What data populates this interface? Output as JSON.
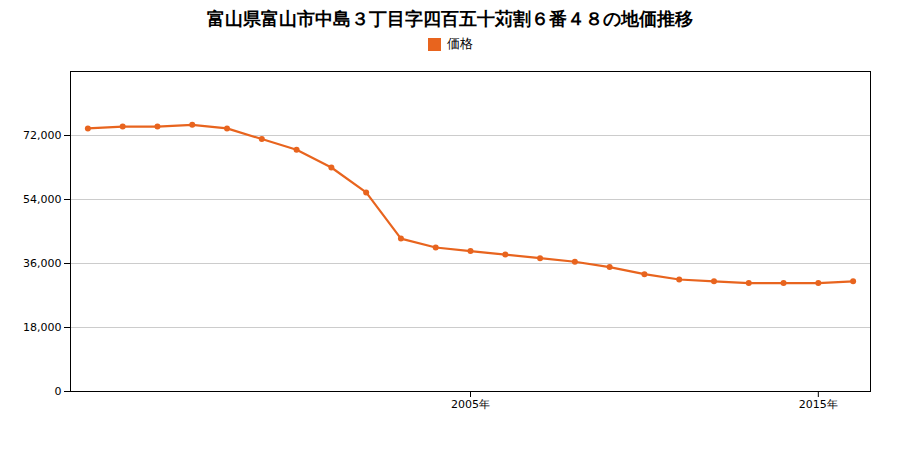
{
  "chart_data": {
    "type": "line",
    "title": "富山県富山市中島３丁目字四百五十苅割６番４８の地価推移",
    "x": [
      1994,
      1995,
      1996,
      1997,
      1998,
      1999,
      2000,
      2001,
      2002,
      2003,
      2004,
      2005,
      2006,
      2007,
      2008,
      2009,
      2010,
      2011,
      2012,
      2013,
      2014,
      2015,
      2016
    ],
    "series": [
      {
        "name": "価格",
        "color": "#e8641e",
        "marker": "circle",
        "values": [
          74000,
          74500,
          74500,
          75000,
          74000,
          71000,
          68000,
          63000,
          56000,
          43000,
          40500,
          39500,
          38500,
          37500,
          36500,
          35000,
          33000,
          31500,
          31000,
          30500,
          30500,
          30500,
          31000
        ]
      }
    ],
    "xlim": [
      1993.5,
      2016.5
    ],
    "xticks": [
      {
        "value": 2005,
        "label": "2005年"
      },
      {
        "value": 2015,
        "label": "2015年"
      }
    ],
    "ylim": [
      0,
      90000
    ],
    "yticks": [
      0,
      {
        "value": 18000,
        "label": "18,000"
      },
      {
        "value": 36000,
        "label": "36,000"
      },
      {
        "value": 54000,
        "label": "54,000"
      },
      {
        "value": 72000,
        "label": "72,000"
      }
    ],
    "grid": true,
    "legend": "top"
  }
}
